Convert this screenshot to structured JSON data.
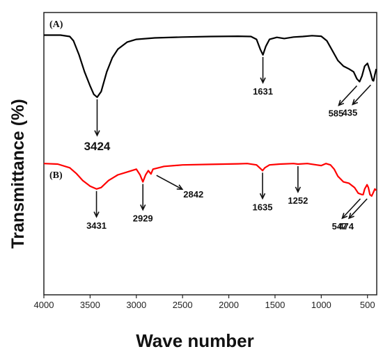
{
  "chart_data": {
    "type": "line",
    "title": "",
    "xlabel": "Wave number",
    "ylabel": "Transmittance (%)",
    "xlim": [
      4000,
      400
    ],
    "x_reversed": true,
    "xticks": [
      4000,
      3500,
      3000,
      2500,
      2000,
      1500,
      1000,
      500
    ],
    "ylim": [
      0,
      100
    ],
    "grid": false,
    "series": [
      {
        "name": "(A)",
        "color": "#000000",
        "points": [
          [
            4000,
            92
          ],
          [
            3820,
            92
          ],
          [
            3720,
            91.5
          ],
          [
            3680,
            90
          ],
          [
            3620,
            85
          ],
          [
            3560,
            79
          ],
          [
            3500,
            74
          ],
          [
            3460,
            71
          ],
          [
            3424,
            70
          ],
          [
            3380,
            72
          ],
          [
            3320,
            79
          ],
          [
            3260,
            84
          ],
          [
            3200,
            87
          ],
          [
            3100,
            89.5
          ],
          [
            3000,
            90.5
          ],
          [
            2800,
            91
          ],
          [
            2500,
            91.3
          ],
          [
            2200,
            91.5
          ],
          [
            1900,
            91.6
          ],
          [
            1760,
            91.5
          ],
          [
            1700,
            90.5
          ],
          [
            1660,
            87
          ],
          [
            1631,
            85
          ],
          [
            1600,
            88
          ],
          [
            1560,
            90.5
          ],
          [
            1480,
            91.2
          ],
          [
            1400,
            90.8
          ],
          [
            1300,
            91.3
          ],
          [
            1200,
            91.5
          ],
          [
            1100,
            91.8
          ],
          [
            1000,
            91.6
          ],
          [
            940,
            90
          ],
          [
            880,
            86.5
          ],
          [
            820,
            83
          ],
          [
            760,
            81
          ],
          [
            700,
            80
          ],
          [
            650,
            79
          ],
          [
            615,
            76.5
          ],
          [
            585,
            75.5
          ],
          [
            560,
            77.5
          ],
          [
            530,
            81
          ],
          [
            500,
            82
          ],
          [
            470,
            79
          ],
          [
            445,
            76
          ],
          [
            435,
            75.8
          ],
          [
            420,
            78
          ],
          [
            405,
            80
          ]
        ]
      },
      {
        "name": "(B)",
        "color": "#ff0000",
        "points": [
          [
            4000,
            46.5
          ],
          [
            3850,
            46.3
          ],
          [
            3720,
            45
          ],
          [
            3650,
            43
          ],
          [
            3580,
            40.5
          ],
          [
            3500,
            38.5
          ],
          [
            3431,
            37.5
          ],
          [
            3380,
            38
          ],
          [
            3300,
            40.5
          ],
          [
            3200,
            42.5
          ],
          [
            3100,
            43.5
          ],
          [
            3000,
            44.5
          ],
          [
            2960,
            42.5
          ],
          [
            2929,
            40
          ],
          [
            2900,
            42.5
          ],
          [
            2870,
            44
          ],
          [
            2842,
            42.8
          ],
          [
            2820,
            44.5
          ],
          [
            2700,
            45.5
          ],
          [
            2500,
            46
          ],
          [
            2200,
            46.2
          ],
          [
            1900,
            46.4
          ],
          [
            1800,
            46.5
          ],
          [
            1700,
            46
          ],
          [
            1650,
            44.5
          ],
          [
            1635,
            44
          ],
          [
            1610,
            45
          ],
          [
            1560,
            46
          ],
          [
            1450,
            46.3
          ],
          [
            1300,
            46.5
          ],
          [
            1252,
            46.3
          ],
          [
            1150,
            46.5
          ],
          [
            1050,
            46
          ],
          [
            1000,
            45.8
          ],
          [
            950,
            46.5
          ],
          [
            900,
            46
          ],
          [
            860,
            44.5
          ],
          [
            820,
            42
          ],
          [
            760,
            40
          ],
          [
            700,
            39.5
          ],
          [
            640,
            38
          ],
          [
            600,
            36
          ],
          [
            560,
            35.5
          ],
          [
            547,
            35.5
          ],
          [
            530,
            37.5
          ],
          [
            505,
            39
          ],
          [
            490,
            38
          ],
          [
            474,
            35.5
          ],
          [
            455,
            35
          ],
          [
            440,
            36
          ],
          [
            420,
            37.5
          ],
          [
            405,
            37
          ]
        ]
      }
    ],
    "annotations": [
      {
        "label": "3424",
        "x": 3424,
        "series": "(A)",
        "style": "down-large"
      },
      {
        "label": "1631",
        "x": 1631,
        "series": "(A)",
        "style": "down"
      },
      {
        "label": "585",
        "x": 585,
        "series": "(A)",
        "style": "diag"
      },
      {
        "label": "435",
        "x": 435,
        "series": "(A)",
        "style": "diag"
      },
      {
        "label": "3431",
        "x": 3431,
        "series": "(B)",
        "style": "down"
      },
      {
        "label": "2929",
        "x": 2929,
        "series": "(B)",
        "style": "down"
      },
      {
        "label": "2842",
        "x": 2842,
        "series": "(B)",
        "style": "diag-right"
      },
      {
        "label": "1635",
        "x": 1635,
        "series": "(B)",
        "style": "down"
      },
      {
        "label": "1252",
        "x": 1252,
        "series": "(B)",
        "style": "down"
      },
      {
        "label": "547",
        "x": 547,
        "series": "(B)",
        "style": "diag"
      },
      {
        "label": "474",
        "x": 474,
        "series": "(B)",
        "style": "diag"
      }
    ]
  }
}
